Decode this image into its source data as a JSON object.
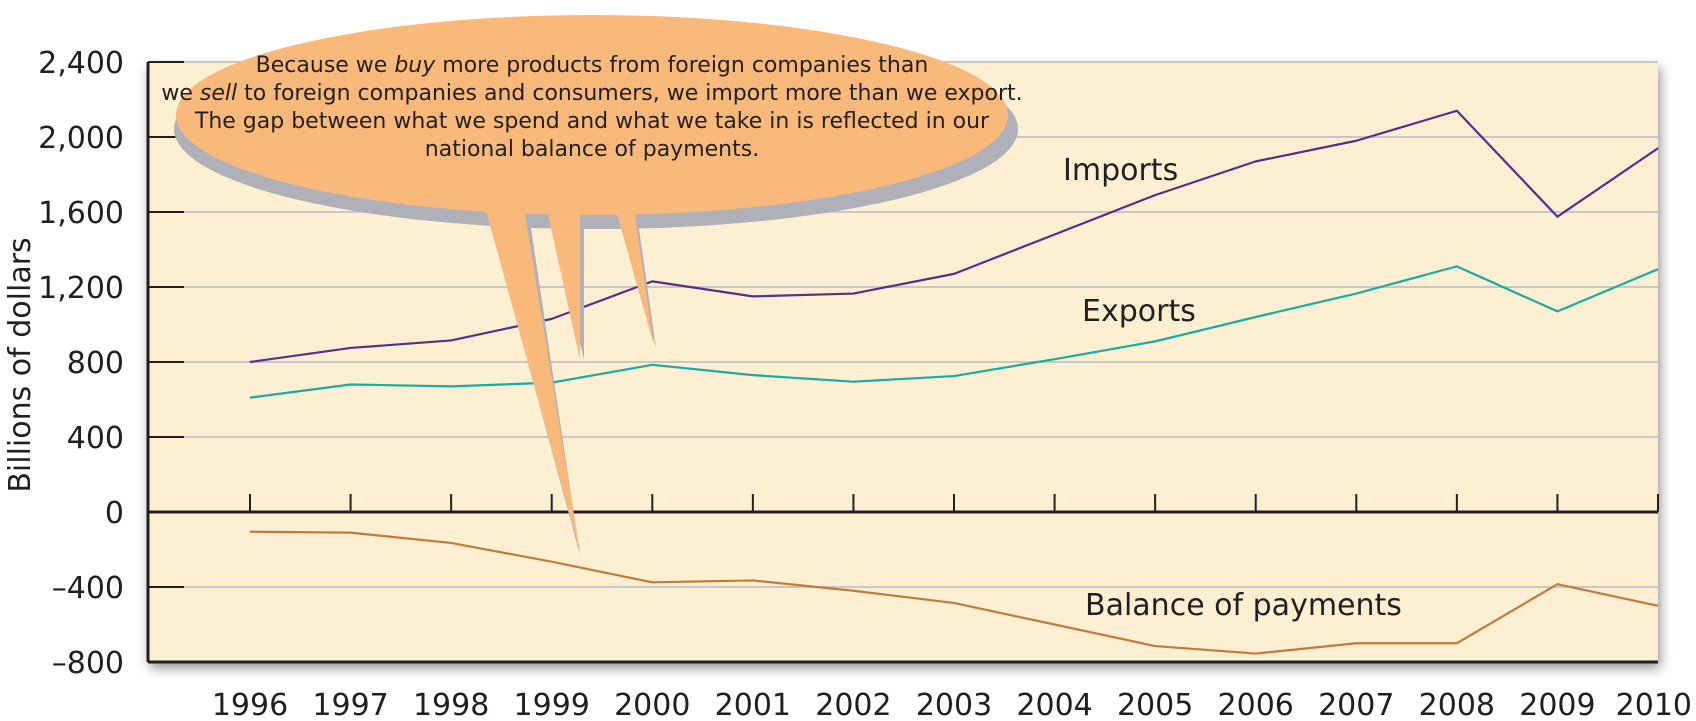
{
  "chart_data": {
    "type": "line",
    "ylabel": "Billions of dollars",
    "ylim": [
      -800,
      2400
    ],
    "yticks": [
      "2,400",
      "2,000",
      "1,600",
      "1,200",
      "800",
      "400",
      "0",
      "–400",
      "–800"
    ],
    "ytick_values": [
      2400,
      2000,
      1600,
      1200,
      800,
      400,
      0,
      -400,
      -800
    ],
    "x": [
      "1996",
      "1997",
      "1998",
      "1999",
      "2000",
      "2001",
      "2002",
      "2003",
      "2004",
      "2005",
      "2006",
      "2007",
      "2008",
      "2009",
      "2010"
    ],
    "series": [
      {
        "name": "Imports",
        "color": "#5b2c8c",
        "values": [
          800,
          875,
          915,
          1030,
          1230,
          1150,
          1165,
          1270,
          1480,
          1690,
          1870,
          1980,
          2140,
          1575,
          1940
        ]
      },
      {
        "name": "Exports",
        "color": "#1aaba1",
        "values": [
          610,
          680,
          670,
          690,
          785,
          730,
          695,
          725,
          815,
          910,
          1040,
          1165,
          1310,
          1070,
          1295
        ]
      },
      {
        "name": "Balance of payments",
        "color": "#c27a3a",
        "values": [
          -105,
          -110,
          -165,
          -265,
          -375,
          -365,
          -420,
          -485,
          -600,
          -715,
          -755,
          -700,
          -700,
          -385,
          -500
        ]
      }
    ],
    "grid": true,
    "colors": {
      "background": "#fdf0d2",
      "gridline": "#c8c8cc",
      "axis": "#231f20",
      "callout": "#f9b97b",
      "callout_shadow": "#b0b0b8"
    },
    "annotation": {
      "lines": [
        [
          {
            "t": "Because we "
          },
          {
            "t": "buy",
            "i": true
          },
          {
            "t": " more products from foreign companies than"
          }
        ],
        [
          {
            "t": "we "
          },
          {
            "t": "sell",
            "i": true
          },
          {
            "t": " to foreign companies and consumers, we import more than we export."
          }
        ],
        [
          {
            "t": "The gap between what we spend and what we take in is reflected in our"
          }
        ],
        [
          {
            "t": "national balance of payments."
          }
        ]
      ]
    }
  }
}
